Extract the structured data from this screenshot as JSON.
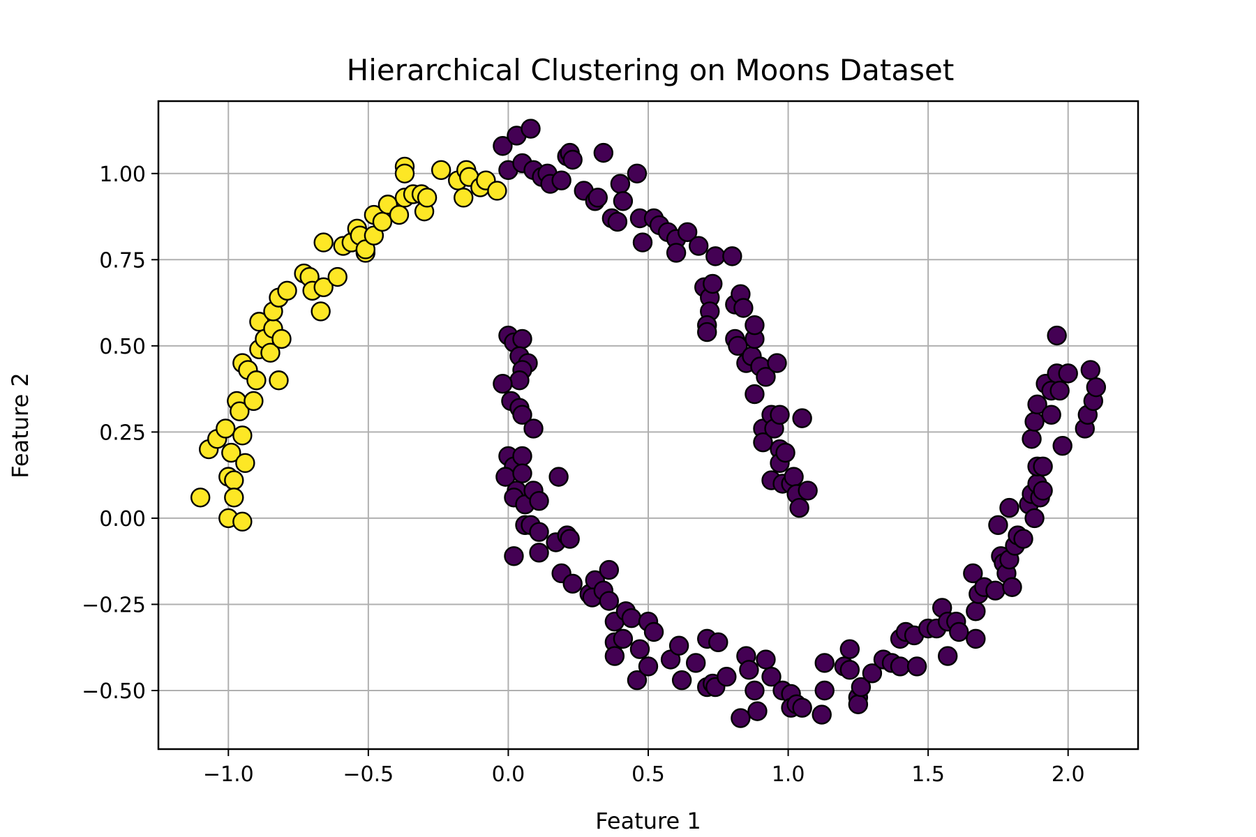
{
  "chart_data": {
    "type": "scatter",
    "title": "Hierarchical Clustering on Moons Dataset",
    "xlabel": "Feature 1",
    "ylabel": "Feature 2",
    "xlim": [
      -1.25,
      2.25
    ],
    "ylim": [
      -0.67,
      1.21
    ],
    "grid": true,
    "xticks": [
      -1.0,
      -0.5,
      0.0,
      0.5,
      1.0,
      1.5,
      2.0
    ],
    "xtick_labels": [
      "−1.0",
      "−0.5",
      "0.0",
      "0.5",
      "1.0",
      "1.5",
      "2.0"
    ],
    "yticks": [
      -0.5,
      -0.25,
      0.0,
      0.25,
      0.5,
      0.75,
      1.0
    ],
    "ytick_labels": [
      "−0.50",
      "−0.25",
      "0.00",
      "0.25",
      "0.50",
      "0.75",
      "1.00"
    ],
    "colors": {
      "cluster_0": "#440154",
      "cluster_1": "#fde725"
    },
    "series": [
      {
        "color": "#fde725",
        "points": [
          [
            -1.1,
            0.06
          ],
          [
            -1.07,
            0.2
          ],
          [
            -1.04,
            0.23
          ],
          [
            -1.01,
            0.26
          ],
          [
            -1.0,
            0.12
          ],
          [
            -1.0,
            0.0
          ],
          [
            -0.99,
            0.19
          ],
          [
            -0.98,
            0.11
          ],
          [
            -0.98,
            0.06
          ],
          [
            -0.97,
            0.34
          ],
          [
            -0.96,
            0.31
          ],
          [
            -0.95,
            0.24
          ],
          [
            -0.95,
            -0.01
          ],
          [
            -0.94,
            0.16
          ],
          [
            -0.95,
            0.45
          ],
          [
            -0.93,
            0.43
          ],
          [
            -0.91,
            0.34
          ],
          [
            -0.9,
            0.4
          ],
          [
            -0.89,
            0.49
          ],
          [
            -0.89,
            0.57
          ],
          [
            -0.87,
            0.52
          ],
          [
            -0.85,
            0.48
          ],
          [
            -0.84,
            0.55
          ],
          [
            -0.84,
            0.6
          ],
          [
            -0.82,
            0.64
          ],
          [
            -0.81,
            0.52
          ],
          [
            -0.82,
            0.4
          ],
          [
            -0.79,
            0.66
          ],
          [
            -0.73,
            0.71
          ],
          [
            -0.71,
            0.7
          ],
          [
            -0.7,
            0.66
          ],
          [
            -0.67,
            0.6
          ],
          [
            -0.66,
            0.67
          ],
          [
            -0.66,
            0.8
          ],
          [
            -0.61,
            0.7
          ],
          [
            -0.59,
            0.79
          ],
          [
            -0.56,
            0.8
          ],
          [
            -0.54,
            0.84
          ],
          [
            -0.53,
            0.82
          ],
          [
            -0.51,
            0.77
          ],
          [
            -0.51,
            0.78
          ],
          [
            -0.48,
            0.82
          ],
          [
            -0.48,
            0.88
          ],
          [
            -0.45,
            0.86
          ],
          [
            -0.43,
            0.91
          ],
          [
            -0.39,
            0.88
          ],
          [
            -0.37,
            0.93
          ],
          [
            -0.37,
            1.02
          ],
          [
            -0.37,
            1.0
          ],
          [
            -0.34,
            0.94
          ],
          [
            -0.31,
            0.94
          ],
          [
            -0.3,
            0.89
          ],
          [
            -0.29,
            0.93
          ],
          [
            -0.24,
            1.01
          ],
          [
            -0.18,
            0.98
          ],
          [
            -0.16,
            0.93
          ],
          [
            -0.15,
            1.01
          ],
          [
            -0.14,
            0.99
          ],
          [
            -0.1,
            0.96
          ],
          [
            -0.08,
            0.98
          ],
          [
            -0.04,
            0.95
          ]
        ]
      },
      {
        "color": "#440154",
        "points": [
          [
            -0.02,
            1.08
          ],
          [
            0.03,
            1.11
          ],
          [
            0.08,
            1.13
          ],
          [
            0.0,
            1.01
          ],
          [
            0.05,
            1.03
          ],
          [
            0.09,
            1.01
          ],
          [
            0.12,
            0.99
          ],
          [
            0.14,
            1.0
          ],
          [
            0.15,
            0.97
          ],
          [
            0.19,
            0.98
          ],
          [
            0.21,
            1.05
          ],
          [
            0.22,
            1.06
          ],
          [
            0.23,
            1.04
          ],
          [
            0.27,
            0.95
          ],
          [
            0.31,
            0.92
          ],
          [
            0.32,
            0.93
          ],
          [
            0.34,
            1.06
          ],
          [
            0.37,
            0.87
          ],
          [
            0.39,
            0.86
          ],
          [
            0.4,
            0.97
          ],
          [
            0.41,
            0.92
          ],
          [
            0.46,
            1.0
          ],
          [
            0.47,
            0.87
          ],
          [
            0.48,
            0.8
          ],
          [
            0.52,
            0.87
          ],
          [
            0.54,
            0.85
          ],
          [
            0.57,
            0.83
          ],
          [
            0.6,
            0.81
          ],
          [
            0.6,
            0.77
          ],
          [
            0.64,
            0.83
          ],
          [
            0.68,
            0.79
          ],
          [
            0.7,
            0.67
          ],
          [
            0.72,
            0.64
          ],
          [
            0.72,
            0.6
          ],
          [
            0.71,
            0.56
          ],
          [
            0.71,
            0.54
          ],
          [
            0.73,
            0.68
          ],
          [
            0.74,
            0.76
          ],
          [
            0.8,
            0.76
          ],
          [
            0.81,
            0.62
          ],
          [
            0.81,
            0.52
          ],
          [
            0.82,
            0.5
          ],
          [
            0.83,
            0.65
          ],
          [
            0.84,
            0.61
          ],
          [
            0.85,
            0.45
          ],
          [
            0.87,
            0.47
          ],
          [
            0.88,
            0.52
          ],
          [
            0.88,
            0.56
          ],
          [
            0.88,
            0.36
          ],
          [
            0.9,
            0.44
          ],
          [
            0.91,
            0.26
          ],
          [
            0.91,
            0.22
          ],
          [
            0.92,
            0.41
          ],
          [
            0.94,
            0.3
          ],
          [
            0.94,
            0.11
          ],
          [
            0.95,
            0.26
          ],
          [
            0.96,
            0.45
          ],
          [
            0.97,
            0.2
          ],
          [
            0.97,
            0.16
          ],
          [
            0.97,
            0.3
          ],
          [
            0.98,
            0.1
          ],
          [
            0.99,
            0.19
          ],
          [
            1.01,
            0.1
          ],
          [
            1.02,
            0.12
          ],
          [
            1.03,
            0.07
          ],
          [
            1.04,
            0.03
          ],
          [
            1.05,
            0.29
          ],
          [
            1.07,
            0.08
          ],
          [
            0.0,
            0.53
          ],
          [
            0.02,
            0.51
          ],
          [
            0.05,
            0.52
          ],
          [
            0.04,
            0.47
          ],
          [
            0.07,
            0.45
          ],
          [
            0.05,
            0.43
          ],
          [
            0.04,
            0.4
          ],
          [
            -0.02,
            0.39
          ],
          [
            0.01,
            0.34
          ],
          [
            0.04,
            0.32
          ],
          [
            0.05,
            0.3
          ],
          [
            0.09,
            0.26
          ],
          [
            0.0,
            0.18
          ],
          [
            0.02,
            0.15
          ],
          [
            0.05,
            0.18
          ],
          [
            -0.01,
            0.12
          ],
          [
            0.05,
            0.13
          ],
          [
            0.03,
            0.08
          ],
          [
            0.02,
            0.06
          ],
          [
            0.06,
            0.04
          ],
          [
            0.09,
            0.08
          ],
          [
            0.11,
            0.05
          ],
          [
            0.18,
            0.12
          ],
          [
            0.06,
            -0.02
          ],
          [
            0.08,
            -0.02
          ],
          [
            0.11,
            -0.04
          ],
          [
            0.02,
            -0.11
          ],
          [
            0.11,
            -0.1
          ],
          [
            0.17,
            -0.07
          ],
          [
            0.21,
            -0.05
          ],
          [
            0.22,
            -0.06
          ],
          [
            0.19,
            -0.16
          ],
          [
            0.23,
            -0.19
          ],
          [
            0.29,
            -0.22
          ],
          [
            0.31,
            -0.18
          ],
          [
            0.3,
            -0.23
          ],
          [
            0.34,
            -0.21
          ],
          [
            0.36,
            -0.24
          ],
          [
            0.36,
            -0.15
          ],
          [
            0.38,
            -0.3
          ],
          [
            0.38,
            -0.36
          ],
          [
            0.38,
            -0.4
          ],
          [
            0.41,
            -0.35
          ],
          [
            0.42,
            -0.27
          ],
          [
            0.44,
            -0.29
          ],
          [
            0.47,
            -0.38
          ],
          [
            0.46,
            -0.47
          ],
          [
            0.5,
            -0.43
          ],
          [
            0.5,
            -0.3
          ],
          [
            0.52,
            -0.33
          ],
          [
            0.58,
            -0.41
          ],
          [
            0.61,
            -0.37
          ],
          [
            0.62,
            -0.47
          ],
          [
            0.67,
            -0.42
          ],
          [
            0.71,
            -0.35
          ],
          [
            0.71,
            -0.49
          ],
          [
            0.73,
            -0.48
          ],
          [
            0.74,
            -0.49
          ],
          [
            0.75,
            -0.36
          ],
          [
            0.78,
            -0.46
          ],
          [
            0.83,
            -0.58
          ],
          [
            0.85,
            -0.4
          ],
          [
            0.86,
            -0.44
          ],
          [
            0.88,
            -0.5
          ],
          [
            0.89,
            -0.56
          ],
          [
            0.92,
            -0.41
          ],
          [
            0.94,
            -0.46
          ],
          [
            0.98,
            -0.5
          ],
          [
            1.01,
            -0.51
          ],
          [
            1.01,
            -0.55
          ],
          [
            1.03,
            -0.54
          ],
          [
            1.05,
            -0.55
          ],
          [
            1.12,
            -0.57
          ],
          [
            1.13,
            -0.42
          ],
          [
            1.13,
            -0.5
          ],
          [
            1.2,
            -0.43
          ],
          [
            1.22,
            -0.38
          ],
          [
            1.22,
            -0.44
          ],
          [
            1.25,
            -0.52
          ],
          [
            1.25,
            -0.54
          ],
          [
            1.26,
            -0.49
          ],
          [
            1.3,
            -0.45
          ],
          [
            1.34,
            -0.41
          ],
          [
            1.37,
            -0.42
          ],
          [
            1.4,
            -0.43
          ],
          [
            1.4,
            -0.35
          ],
          [
            1.42,
            -0.33
          ],
          [
            1.45,
            -0.34
          ],
          [
            1.46,
            -0.43
          ],
          [
            1.5,
            -0.32
          ],
          [
            1.53,
            -0.32
          ],
          [
            1.55,
            -0.26
          ],
          [
            1.57,
            -0.3
          ],
          [
            1.57,
            -0.4
          ],
          [
            1.6,
            -0.3
          ],
          [
            1.61,
            -0.33
          ],
          [
            1.66,
            -0.16
          ],
          [
            1.67,
            -0.27
          ],
          [
            1.67,
            -0.35
          ],
          [
            1.68,
            -0.22
          ],
          [
            1.7,
            -0.2
          ],
          [
            1.74,
            -0.21
          ],
          [
            1.75,
            -0.02
          ],
          [
            1.76,
            -0.11
          ],
          [
            1.77,
            -0.13
          ],
          [
            1.78,
            -0.16
          ],
          [
            1.79,
            -0.12
          ],
          [
            1.8,
            -0.2
          ],
          [
            1.79,
            0.03
          ],
          [
            1.81,
            -0.08
          ],
          [
            1.82,
            -0.05
          ],
          [
            1.84,
            -0.06
          ],
          [
            1.86,
            0.04
          ],
          [
            1.87,
            0.07
          ],
          [
            1.88,
            0.0
          ],
          [
            1.89,
            0.1
          ],
          [
            1.9,
            0.06
          ],
          [
            1.91,
            0.08
          ],
          [
            1.89,
            0.15
          ],
          [
            1.91,
            0.15
          ],
          [
            1.87,
            0.23
          ],
          [
            1.88,
            0.28
          ],
          [
            1.89,
            0.33
          ],
          [
            1.92,
            0.39
          ],
          [
            1.94,
            0.3
          ],
          [
            1.94,
            0.37
          ],
          [
            1.96,
            0.42
          ],
          [
            1.96,
            0.53
          ],
          [
            1.98,
            0.21
          ],
          [
            1.97,
            0.37
          ],
          [
            2.0,
            0.42
          ],
          [
            2.06,
            0.26
          ],
          [
            2.07,
            0.3
          ],
          [
            2.08,
            0.43
          ],
          [
            2.09,
            0.34
          ],
          [
            2.1,
            0.38
          ]
        ]
      }
    ]
  }
}
